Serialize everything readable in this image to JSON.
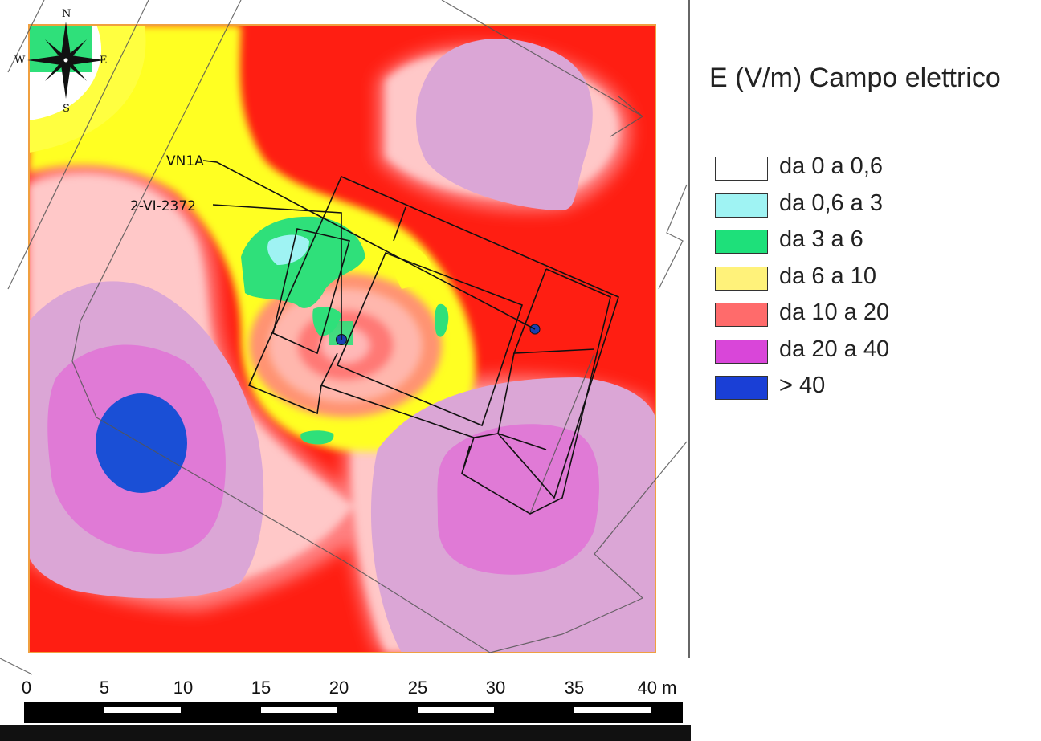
{
  "legend": {
    "title": "E (V/m) Campo elettrico",
    "items": [
      {
        "label": "da 0 a 0,6",
        "color": "#ffffff"
      },
      {
        "label": "da 0,6 a 3",
        "color": "#9ff3f3"
      },
      {
        "label": "da 3 a 6",
        "color": "#1ee07a"
      },
      {
        "label": "da 6 a 10",
        "color": "#fff27a"
      },
      {
        "label": "da 10 a 20",
        "color": "#ff6b6b"
      },
      {
        "label": "da 20 a 40",
        "color": "#d946d9"
      },
      {
        "label": "> 40",
        "color": "#1a3fd6"
      }
    ]
  },
  "compass": {
    "n": "N",
    "s": "S",
    "e": "E",
    "w": "W"
  },
  "labels": {
    "antenna1": "VN1A",
    "antenna2": "2-VI-2372"
  },
  "scale": {
    "ticks": [
      "0",
      "5",
      "10",
      "15",
      "20",
      "25",
      "30",
      "35",
      "40 m"
    ]
  },
  "colors": {
    "field_red": "#ff1e12",
    "field_salmon": "#ff8080",
    "field_lightpink": "#ffc8c8",
    "field_yellow": "#ffff24",
    "field_green": "#2fe07a",
    "field_cyan": "#9ff3f3",
    "field_lilac": "#dba6d6",
    "field_magenta": "#e07ad6",
    "field_blue": "#1a4fd6",
    "frame": "#f0a040"
  }
}
